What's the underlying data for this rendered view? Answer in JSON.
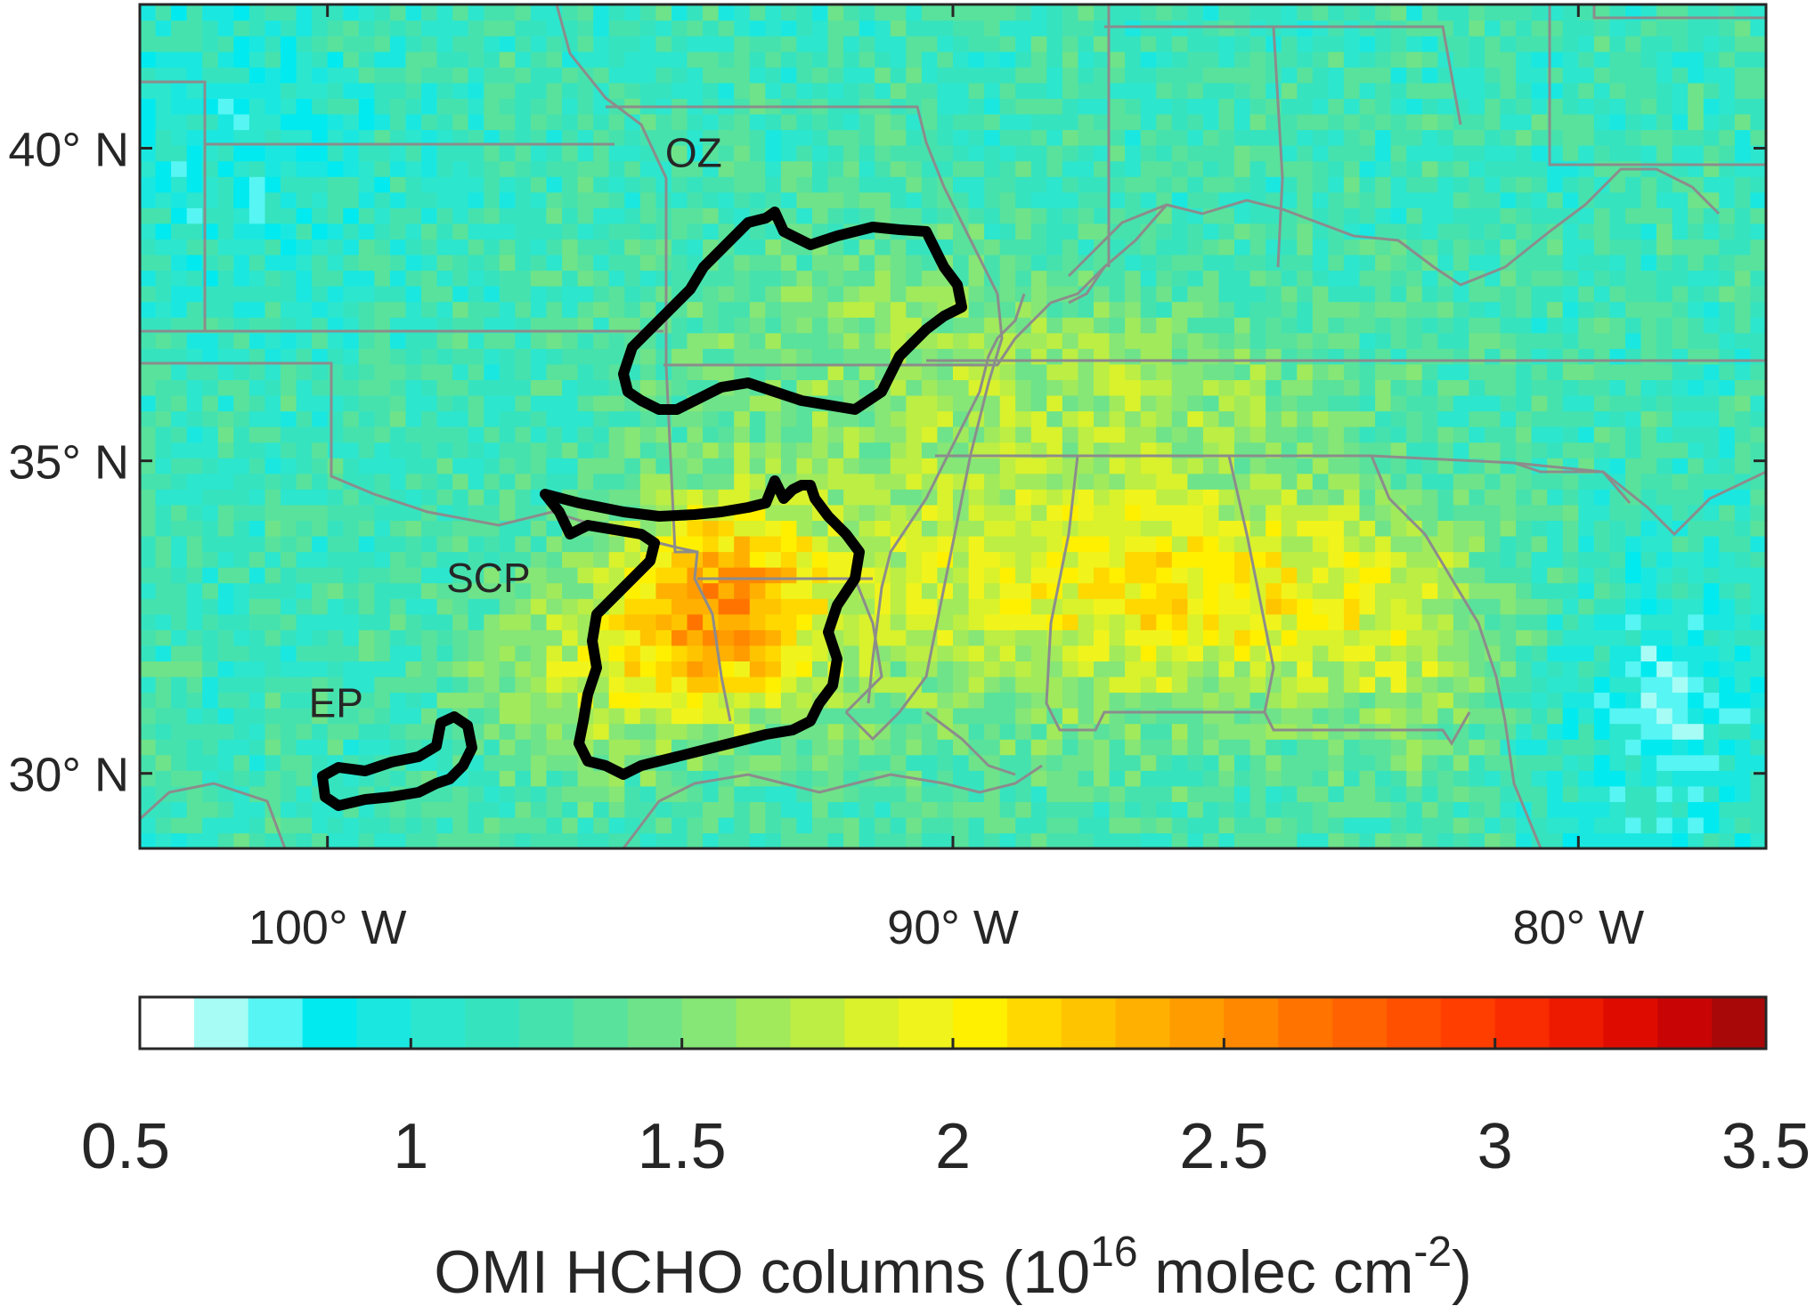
{
  "map": {
    "lon_range": [
      -103,
      -77
    ],
    "lat_range": [
      28.8,
      42.3
    ],
    "lat_ticks": [
      {
        "value": 40,
        "label": "40° N"
      },
      {
        "value": 35,
        "label": "35° N"
      },
      {
        "value": 30,
        "label": "30° N"
      }
    ],
    "lon_ticks": [
      {
        "value": -100,
        "label": "100°  W"
      },
      {
        "value": -90,
        "label": "90°  W"
      },
      {
        "value": -80,
        "label": "80°  W"
      }
    ],
    "regions": [
      {
        "id": "oz",
        "label": "OZ",
        "label_lon": -94.6,
        "label_lat": 39.7
      },
      {
        "id": "scp",
        "label": "SCP",
        "label_lon": -98.1,
        "label_lat": 32.9
      },
      {
        "id": "ep",
        "label": "EP",
        "label_lon": -100.3,
        "label_lat": 30.9
      }
    ],
    "outline_color": "#000000",
    "border_color": "#8c8c8c",
    "land_background": "#3fe8c8"
  },
  "colorbar": {
    "min": 0.5,
    "max": 3.5,
    "ticks": [
      {
        "value": 0.5,
        "label": "0.5"
      },
      {
        "value": 1,
        "label": "1"
      },
      {
        "value": 1.5,
        "label": "1.5"
      },
      {
        "value": 2,
        "label": "2"
      },
      {
        "value": 2.5,
        "label": "2.5"
      },
      {
        "value": 3,
        "label": "3"
      },
      {
        "value": 3.5,
        "label": "3.5"
      }
    ],
    "colors": [
      "#ffffff",
      "#a8fcf6",
      "#57f5f3",
      "#00eaf0",
      "#1ae8e0",
      "#2ce6ce",
      "#36e3bf",
      "#46e2ae",
      "#58e29c",
      "#6ee38a",
      "#86e676",
      "#a0ea5c",
      "#bcee44",
      "#d9f22c",
      "#f0f41c",
      "#fff000",
      "#ffd800",
      "#ffc400",
      "#ffb000",
      "#ff9c00",
      "#ff8800",
      "#ff7400",
      "#ff6200",
      "#ff5000",
      "#ff3e00",
      "#f82c00",
      "#ee1a00",
      "#de0c00",
      "#c80404",
      "#a80808"
    ],
    "label_main": "OMI HCHO columns (10",
    "label_exp1": "16",
    "label_mid": " molec cm",
    "label_exp2": "-2",
    "label_end": ")"
  }
}
